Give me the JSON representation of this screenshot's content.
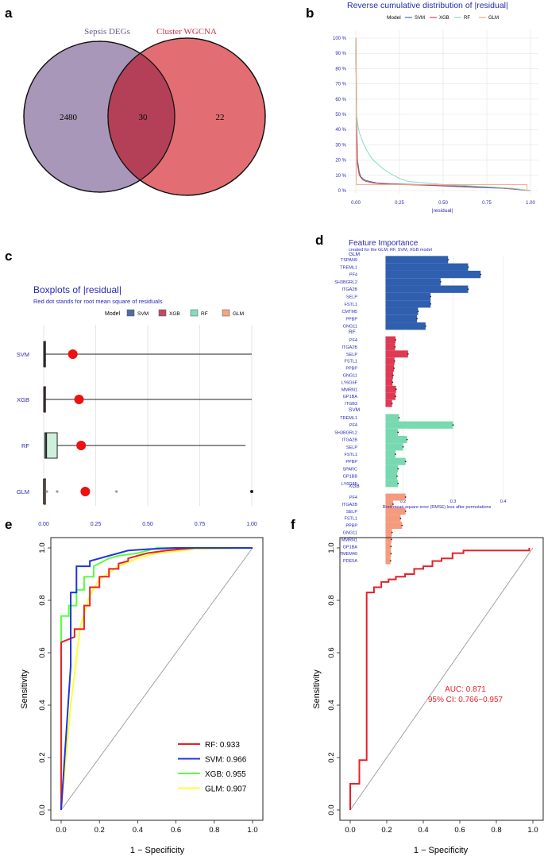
{
  "panel_letters": {
    "a": "a",
    "b": "b",
    "c": "c",
    "d": "d",
    "e": "e",
    "f": "f"
  },
  "chart_data": [
    {
      "panel": "a",
      "type": "venn",
      "sets": [
        "Sepsis DEGs",
        "Cluster WGCNA"
      ],
      "counts": {
        "only_first": "2480",
        "intersection": "30",
        "only_second": "22"
      },
      "colors": [
        "#a897b8",
        "#e26e73",
        "#b44058"
      ]
    },
    {
      "panel": "b",
      "type": "line",
      "title": "Reverse cumulative distribution of |residual|",
      "legend_title": "Model",
      "xlabel": "|residual|",
      "ylabel": "",
      "xlim": [
        0,
        1
      ],
      "ylim": [
        0,
        100
      ],
      "xticks": [
        "0.00",
        "0.25",
        "0.50",
        "0.75",
        "1.00"
      ],
      "yticks": [
        "0 %",
        "10 %",
        "20 %",
        "30 %",
        "40 %",
        "50 %",
        "60 %",
        "70 %",
        "80 %",
        "90 %",
        "100 %"
      ],
      "series": [
        {
          "name": "SVM",
          "color": "#4f6ea0",
          "x": [
            0,
            0.005,
            0.01,
            0.02,
            0.03,
            0.05,
            0.08,
            0.12,
            0.2,
            0.35,
            0.5,
            0.7,
            0.85,
            1.0
          ],
          "y": [
            100,
            45,
            20,
            12,
            9,
            7,
            6,
            5,
            4.5,
            4,
            3,
            2,
            1.5,
            0
          ]
        },
        {
          "name": "XGB",
          "color": "#c04a65",
          "x": [
            0,
            0.005,
            0.01,
            0.02,
            0.04,
            0.06,
            0.1,
            0.15,
            0.25,
            0.4,
            0.6,
            0.8,
            1.0
          ],
          "y": [
            100,
            40,
            17,
            10,
            7,
            6,
            5,
            4.5,
            4,
            3.5,
            3,
            2,
            0
          ]
        },
        {
          "name": "RF",
          "color": "#84dcc0",
          "x": [
            0,
            0.005,
            0.01,
            0.02,
            0.04,
            0.06,
            0.08,
            0.1,
            0.13,
            0.16,
            0.2,
            0.25,
            0.3,
            0.4,
            0.5,
            0.6,
            0.75,
            0.9,
            1.0
          ],
          "y": [
            100,
            50,
            44,
            38,
            32,
            27,
            23,
            20,
            17,
            14,
            11,
            8,
            6,
            5,
            4,
            3.5,
            2.5,
            1.5,
            0
          ]
        },
        {
          "name": "GLM",
          "color": "#f4a582",
          "x": [
            0,
            0.003,
            0.003,
            0.2,
            0.4,
            0.6,
            0.8,
            0.98,
            0.98,
            1.0
          ],
          "y": [
            100,
            100,
            4,
            4,
            4,
            4,
            4,
            4,
            0,
            0
          ]
        }
      ]
    },
    {
      "panel": "c",
      "type": "boxplot",
      "title": "Boxplots of |residual|",
      "subtitle": "Red dot stands for root mean square of residuals",
      "legend_title": "Model",
      "xlim": [
        0,
        1
      ],
      "xticks": [
        "0.00",
        "0.25",
        "0.50",
        "0.75",
        "1.00"
      ],
      "categories": [
        "SVM",
        "XGB",
        "RF",
        "GLM"
      ],
      "colors": {
        "SVM": "#4f6ea0",
        "XGB": "#c04a65",
        "RF": "#84dcc0",
        "GLM": "#f4a582"
      },
      "boxes": [
        {
          "name": "SVM",
          "q1": 0.001,
          "median": 0.002,
          "q3": 0.004,
          "whisker_max": 1.0,
          "rmse": 0.14,
          "outliers": []
        },
        {
          "name": "XGB",
          "q1": 0.001,
          "median": 0.002,
          "q3": 0.005,
          "whisker_max": 1.0,
          "rmse": 0.17,
          "outliers": []
        },
        {
          "name": "RF",
          "q1": 0.005,
          "median": 0.012,
          "q3": 0.065,
          "whisker_max": 0.97,
          "rmse": 0.18,
          "outliers": []
        },
        {
          "name": "GLM",
          "q1": 0.001,
          "median": 0.001,
          "q3": 0.002,
          "whisker_max": 0.003,
          "rmse": 0.2,
          "outliers": [
            0.015,
            0.065,
            0.35,
            1.0
          ]
        }
      ]
    },
    {
      "panel": "d",
      "type": "bar",
      "title": "Feature Importance",
      "subtitle": "created for the GLM, RF, SVM, XGB model",
      "xlabel": "Root mean square error (RMSE) loss after permutations",
      "xlim": [
        0.15,
        0.48
      ],
      "xticks": [
        0.2,
        0.3,
        0.4
      ],
      "baseline": 0.165,
      "series": [
        {
          "name": "GLM",
          "color": "#2f5fae",
          "labels": [
            "TSPAN9",
            "TREML1",
            "PF4",
            "SH3BGRL2",
            "ITGA2B",
            "SELP",
            "FSTL1",
            "CMTM5",
            "PPBP",
            "GNG11"
          ],
          "values": [
            0.29,
            0.33,
            0.355,
            0.275,
            0.33,
            0.255,
            0.255,
            0.23,
            0.228,
            0.245
          ]
        },
        {
          "name": "RF",
          "color": "#df3a55",
          "labels": [
            "PF4",
            "ITGA2B",
            "SELP",
            "FSTL1",
            "PPBP",
            "GNG11",
            "LY6G6F",
            "MMRN1",
            "GP1BA",
            "ITGB3"
          ],
          "values": [
            0.185,
            0.184,
            0.21,
            0.183,
            0.182,
            0.18,
            0.179,
            0.186,
            0.185,
            0.178
          ]
        },
        {
          "name": "SVM",
          "color": "#78d9b0",
          "labels": [
            "TREML1",
            "PF4",
            "SH3BGRL2",
            "ITGA2B",
            "SELP",
            "FSTL1",
            "PPBP",
            "SPARC",
            "GP1BB",
            "LY6G6F"
          ],
          "values": [
            0.192,
            0.3,
            0.19,
            0.208,
            0.2,
            0.185,
            0.205,
            0.19,
            0.188,
            0.19
          ]
        },
        {
          "name": "XGB",
          "color": "#f59a7e",
          "labels": [
            "PF4",
            "ITGA2B",
            "SELP",
            "FSTL1",
            "PPBP",
            "GNG11",
            "MMRN1",
            "GP1BA",
            "TMEM40",
            "PDE5A"
          ],
          "values": [
            0.205,
            0.18,
            0.205,
            0.195,
            0.198,
            0.178,
            0.177,
            0.176,
            0.176,
            0.175
          ]
        }
      ]
    },
    {
      "panel": "e",
      "type": "line",
      "title": "",
      "xlabel": "1 − Specificity",
      "ylabel": "Sensitivity",
      "xlim": [
        0,
        1
      ],
      "ylim": [
        0,
        1
      ],
      "xticks": [
        "0.0",
        "0.2",
        "0.4",
        "0.6",
        "0.8",
        "1.0"
      ],
      "yticks": [
        "0.0",
        "0.2",
        "0.4",
        "0.6",
        "0.8",
        "1.0"
      ],
      "series": [
        {
          "name": "RF",
          "label": "RF: 0.933",
          "color": "#e8202a",
          "x": [
            0,
            0,
            0.07,
            0.07,
            0.12,
            0.12,
            0.15,
            0.15,
            0.2,
            0.2,
            0.25,
            0.25,
            0.3,
            0.3,
            0.35,
            0.35,
            0.4,
            0.45,
            0.55,
            0.7,
            1.0
          ],
          "y": [
            0,
            0.64,
            0.66,
            0.69,
            0.69,
            0.78,
            0.78,
            0.85,
            0.85,
            0.89,
            0.89,
            0.92,
            0.92,
            0.94,
            0.95,
            0.96,
            0.97,
            0.98,
            0.99,
            1.0,
            1.0
          ]
        },
        {
          "name": "SVM",
          "label": "SVM: 0.966",
          "color": "#1f35e0",
          "x": [
            0,
            0.05,
            0.05,
            0.08,
            0.08,
            0.15,
            0.15,
            0.25,
            0.3,
            0.35,
            0.45,
            0.6,
            1.0
          ],
          "y": [
            0,
            0.55,
            0.83,
            0.83,
            0.93,
            0.93,
            0.95,
            0.97,
            0.98,
            0.99,
            0.995,
            1.0,
            1.0
          ]
        },
        {
          "name": "XGB",
          "label": "XGB: 0.955",
          "color": "#57ff3d",
          "x": [
            0,
            0,
            0.04,
            0.04,
            0.08,
            0.08,
            0.12,
            0.12,
            0.17,
            0.17,
            0.25,
            0.3,
            0.4,
            0.5,
            1.0
          ],
          "y": [
            0,
            0.74,
            0.74,
            0.78,
            0.78,
            0.84,
            0.84,
            0.89,
            0.89,
            0.93,
            0.96,
            0.97,
            0.98,
            1.0,
            1.0
          ]
        },
        {
          "name": "GLM",
          "label": "GLM: 0.907",
          "color": "#ffff33",
          "x": [
            0,
            0.05,
            0.1,
            0.15,
            0.2,
            0.3,
            0.4,
            0.5,
            0.7,
            1.0
          ],
          "y": [
            0,
            0.4,
            0.7,
            0.82,
            0.88,
            0.93,
            0.96,
            0.98,
            0.995,
            1.0
          ]
        }
      ],
      "diagonal": true
    },
    {
      "panel": "f",
      "type": "line",
      "title": "",
      "xlabel": "1 − Specificity",
      "ylabel": "Sensitivity",
      "xlim": [
        0,
        1
      ],
      "ylim": [
        0,
        1
      ],
      "xticks": [
        "0.0",
        "0.2",
        "0.4",
        "0.6",
        "0.8",
        "1.0"
      ],
      "yticks": [
        "0.0",
        "0.2",
        "0.4",
        "0.6",
        "0.8",
        "1.0"
      ],
      "annotations": [
        "AUC: 0.871",
        "95% CI: 0.766−0.957"
      ],
      "series": [
        {
          "name": "ROC",
          "color": "#e8202a",
          "x": [
            0,
            0,
            0.05,
            0.05,
            0.09,
            0.09,
            0.13,
            0.13,
            0.17,
            0.17,
            0.21,
            0.21,
            0.25,
            0.25,
            0.3,
            0.3,
            0.35,
            0.35,
            0.4,
            0.4,
            0.45,
            0.45,
            0.5,
            0.5,
            0.56,
            0.56,
            0.62,
            0.62,
            0.98,
            0.98
          ],
          "y": [
            0,
            0.1,
            0.1,
            0.19,
            0.19,
            0.83,
            0.83,
            0.85,
            0.85,
            0.87,
            0.87,
            0.88,
            0.88,
            0.89,
            0.89,
            0.9,
            0.9,
            0.92,
            0.92,
            0.93,
            0.93,
            0.95,
            0.95,
            0.96,
            0.96,
            0.98,
            0.98,
            0.99,
            0.99,
            1.0
          ]
        }
      ],
      "diagonal": true
    }
  ]
}
